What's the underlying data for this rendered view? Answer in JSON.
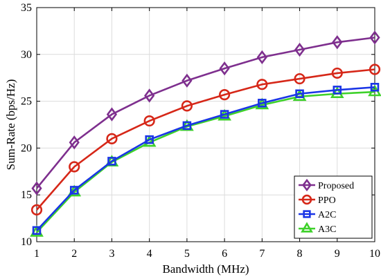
{
  "chart_data": {
    "type": "line",
    "xlabel": "Bandwidth (MHz)",
    "ylabel": "Sum-Rate (bps/Hz)",
    "x": [
      1,
      2,
      3,
      4,
      5,
      6,
      7,
      8,
      9,
      10
    ],
    "xlim": [
      1,
      10
    ],
    "ylim": [
      10,
      35
    ],
    "xticks": [
      1,
      2,
      3,
      4,
      5,
      6,
      7,
      8,
      9,
      10
    ],
    "yticks": [
      10,
      15,
      20,
      25,
      30,
      35
    ],
    "grid": true,
    "legend_position": "bottom-right",
    "series": [
      {
        "name": "Proposed",
        "color": "#7e2f8e",
        "marker": "diamond",
        "values": [
          15.7,
          20.6,
          23.6,
          25.6,
          27.2,
          28.5,
          29.7,
          30.5,
          31.3,
          31.8
        ]
      },
      {
        "name": "PPO",
        "color": "#d62718",
        "marker": "circle",
        "values": [
          13.4,
          18.0,
          21.0,
          22.9,
          24.5,
          25.7,
          26.8,
          27.4,
          28.0,
          28.4
        ]
      },
      {
        "name": "A2C",
        "color": "#1a35e6",
        "marker": "square",
        "values": [
          11.2,
          15.5,
          18.6,
          20.9,
          22.4,
          23.6,
          24.8,
          25.8,
          26.2,
          26.5
        ]
      },
      {
        "name": "A3C",
        "color": "#3ed12a",
        "marker": "triangle",
        "values": [
          11.0,
          15.3,
          18.5,
          20.6,
          22.3,
          23.4,
          24.6,
          25.5,
          25.8,
          26.0
        ]
      }
    ]
  }
}
